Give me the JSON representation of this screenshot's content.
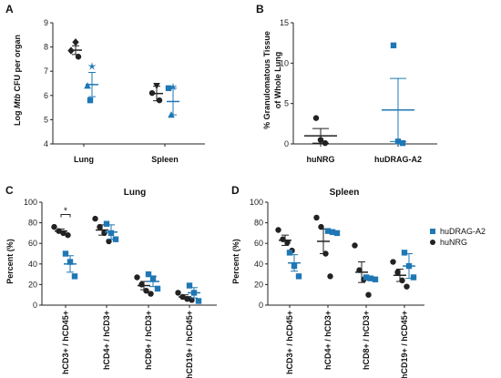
{
  "colors": {
    "huNRG": "#222222",
    "huDRAG": "#1f77b4"
  },
  "legend": {
    "items": [
      "huDRAG-A2",
      "huNRG"
    ]
  },
  "chart_data": [
    {
      "panel": "A",
      "type": "scatter",
      "ylabel_prefix": "Log ",
      "ylabel_italic": "Mtb",
      "ylabel_suffix": " CFU per organ",
      "ylim": [
        4,
        9
      ],
      "yticks": [
        4,
        5,
        6,
        7,
        8,
        9
      ],
      "categories": [
        "Lung",
        "Spleen"
      ],
      "series": [
        {
          "group": "huNRG",
          "points": [
            [
              8.2,
              7.85,
              7.6
            ],
            [
              6.4,
              6.1,
              5.8
            ]
          ],
          "mean": [
            7.87,
            6.08
          ],
          "sem": [
            0.18,
            0.3
          ]
        },
        {
          "group": "huDRAG",
          "points": [
            [
              7.2,
              6.4,
              5.8
            ],
            [
              6.35,
              6.3,
              5.2
            ]
          ],
          "mean": [
            6.45,
            5.75
          ],
          "sem": [
            0.5,
            0.55
          ]
        }
      ]
    },
    {
      "panel": "B",
      "type": "scatter",
      "ylabel_line1": "% Granulomatous Tissue",
      "ylabel_line2": "of Whole Lung",
      "ylim": [
        0,
        15
      ],
      "yticks": [
        0,
        5,
        10,
        15
      ],
      "categories": [
        "huNRG",
        "huDRAG-A2"
      ],
      "series": [
        {
          "group": "huNRG",
          "points": [
            [
              3.2,
              0.5,
              0.1
            ]
          ],
          "mean": [
            1.0
          ],
          "sem": [
            0.9
          ]
        },
        {
          "group": "huDRAG",
          "points": [
            [
              12.2,
              0.3,
              0.1
            ]
          ],
          "mean": [
            4.2
          ],
          "sem": [
            3.9
          ]
        }
      ]
    },
    {
      "panel": "C",
      "title": "Lung",
      "type": "scatter",
      "ylabel": "Percent (%)",
      "ylim": [
        0,
        100
      ],
      "yticks": [
        0,
        20,
        40,
        60,
        80,
        100
      ],
      "categories": [
        "hCD3+ / hCD45+",
        "hCD4+ / hCD3+",
        "hCD8+ / hCD3+",
        "hCD19+ / hCD45+"
      ],
      "significance": {
        "category": 0,
        "label": "*"
      },
      "series": [
        {
          "group": "huNRG",
          "points": [
            [
              76,
              72,
              70,
              68
            ],
            [
              84,
              76,
              70,
              62
            ],
            [
              27,
              20,
              14,
              11
            ],
            [
              12,
              8,
              6,
              5
            ]
          ],
          "mean": [
            72,
            73,
            19,
            8
          ],
          "sem": [
            2,
            5,
            4,
            2
          ]
        },
        {
          "group": "huDRAG",
          "points": [
            [
              50,
              42,
              28
            ],
            [
              79,
              70,
              64
            ],
            [
              30,
              26,
              16
            ],
            [
              19,
              12,
              4
            ]
          ],
          "mean": [
            40,
            71,
            23,
            12
          ],
          "sem": [
            8,
            7,
            5,
            5
          ]
        }
      ]
    },
    {
      "panel": "D",
      "title": "Spleen",
      "type": "scatter",
      "ylabel": "Percent (%)",
      "ylim": [
        0,
        100
      ],
      "yticks": [
        0,
        20,
        40,
        60,
        80,
        100
      ],
      "categories": [
        "hCD3+ / hCD45+",
        "hCD4+ / hCD3+",
        "hCD8+ / hCD3+",
        "hCD19+ / hCD45+"
      ],
      "series": [
        {
          "group": "huNRG",
          "points": [
            [
              73,
              64,
              61,
              53
            ],
            [
              85,
              76,
              50,
              28
            ],
            [
              58,
              34,
              25,
              10
            ],
            [
              42,
              32,
              24,
              18
            ]
          ],
          "mean": [
            63,
            62,
            32,
            29
          ],
          "sem": [
            5,
            12,
            10,
            6
          ]
        },
        {
          "group": "huDRAG",
          "points": [
            [
              51,
              38,
              28
            ],
            [
              72,
              71,
              70
            ],
            [
              27,
              26,
              25
            ],
            [
              51,
              38,
              27
            ]
          ],
          "mean": [
            41,
            71,
            25,
            38
          ],
          "sem": [
            8,
            1,
            1,
            12
          ]
        }
      ]
    }
  ]
}
